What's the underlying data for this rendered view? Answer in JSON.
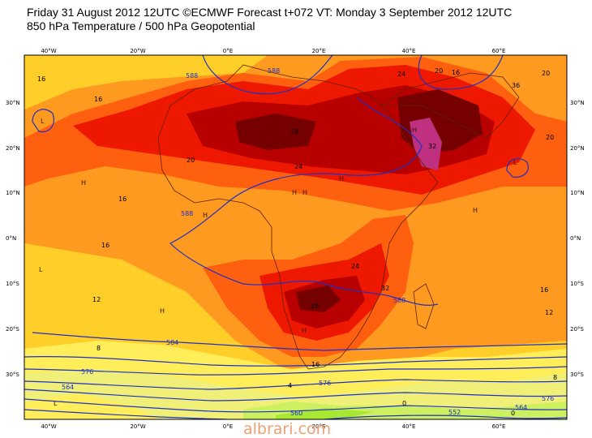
{
  "header": {
    "line1": "Friday 31 August 2012 12UTC ©ECMWF Forecast t+072 VT: Monday 3 September 2012 12UTC",
    "line2": "850 hPa Temperature / 500 hPa Geopotential"
  },
  "axes": {
    "lon_labels": [
      "40°W",
      "20°W",
      "0°E",
      "20°E",
      "40°E",
      "60°E"
    ],
    "lat_labels": [
      "30°N",
      "20°N",
      "10°N",
      "0°N",
      "10°S",
      "20°S",
      "30°S"
    ]
  },
  "map": {
    "temperature_labels": [
      "16",
      "16",
      "16",
      "20",
      "24",
      "28",
      "28",
      "32",
      "36",
      "24",
      "20",
      "16",
      "16",
      "20",
      "20",
      "24",
      "28",
      "32",
      "32",
      "28",
      "24",
      "20",
      "16",
      "16",
      "12",
      "12",
      "16",
      "8",
      "4",
      "0",
      "0",
      "4",
      "4",
      "4"
    ],
    "geopotential_labels": [
      "588",
      "588",
      "588",
      "588",
      "584",
      "580",
      "576",
      "564",
      "584",
      "560",
      "552",
      "564"
    ],
    "pressure_markers": [
      "H",
      "L"
    ],
    "colors": {
      "c0": "#a8e832",
      "c4": "#ccf060",
      "c8": "#f0f078",
      "c12": "#ffee5a",
      "c16": "#ffce28",
      "c20": "#ff9a20",
      "c24": "#ff6010",
      "c28": "#ee1800",
      "c32": "#b80000",
      "c36": "#760000",
      "c40": "#c03080",
      "geopotential": "#2030c0",
      "coast": "#602000"
    }
  },
  "watermark": "albrari.com"
}
